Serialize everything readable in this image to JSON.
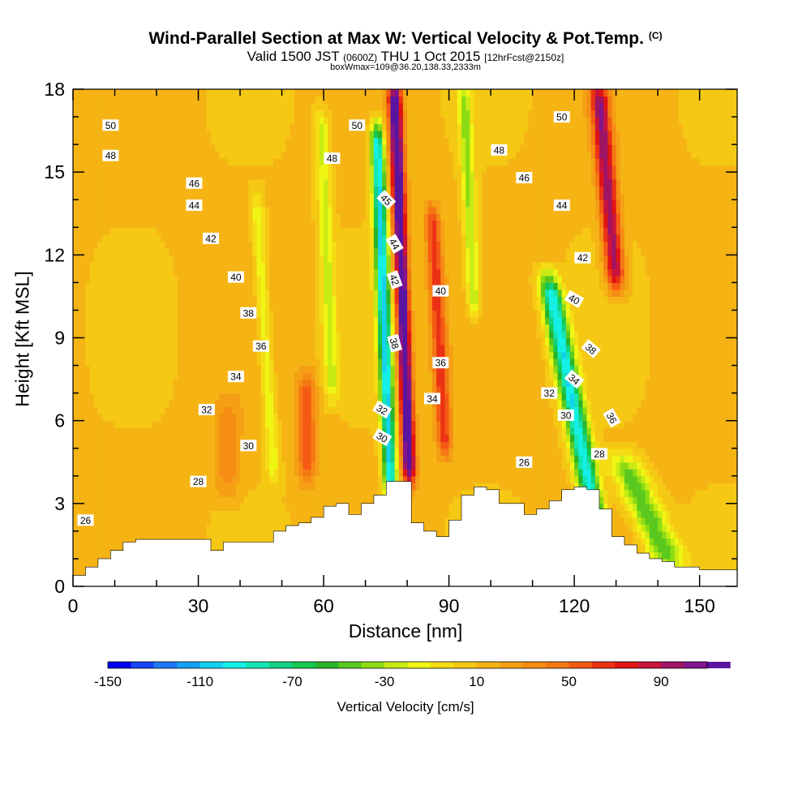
{
  "title": {
    "main": "Wind-Parallel Section at Max W: Vertical Velocity & Pot.Temp.",
    "copyright": "(C)",
    "valid_prefix": "Valid 1500 JST",
    "valid_utc": "(0600Z)",
    "valid_date": "THU 1 Oct 2015",
    "forecast_info": "[12hrFcst@2150z]",
    "box_info": "boxWmax=109@36.20,138.33,2333m"
  },
  "chart_data": {
    "type": "heatmap",
    "xlabel": "Distance [nm]",
    "ylabel": "Height [Kft MSL]",
    "xlim": [
      0,
      159
    ],
    "ylim": [
      0,
      18
    ],
    "xticks": [
      0,
      30,
      60,
      90,
      120,
      150
    ],
    "yticks": [
      0,
      3,
      6,
      9,
      12,
      15,
      18
    ],
    "field": "Vertical Velocity",
    "colorbar": {
      "label": "Vertical Velocity [cm/s]",
      "min": -150,
      "max": 110,
      "step": 10,
      "tick_labels": [
        "-150",
        "-110",
        "-70",
        "-30",
        "10",
        "50",
        "90"
      ],
      "tick_values": [
        -150,
        -110,
        -70,
        -30,
        10,
        50,
        90
      ],
      "colors": [
        "#0000f0",
        "#1446f5",
        "#1e78f5",
        "#14a0f5",
        "#14d2f0",
        "#14f0e6",
        "#14e6b4",
        "#14d282",
        "#14c850",
        "#28b428",
        "#5ac81e",
        "#8cdc14",
        "#c8eb14",
        "#f0f514",
        "#f5dc14",
        "#f5c814",
        "#f5b414",
        "#f5a014",
        "#f58c14",
        "#f57814",
        "#f55a14",
        "#eb3214",
        "#e11414",
        "#c8143c",
        "#a01464",
        "#82148c",
        "#5a14a0"
      ]
    },
    "background_velocity": 12,
    "updrafts": [
      {
        "x": 80.5,
        "y0": 4.0,
        "y1": 18.0,
        "slope": -0.25,
        "amp": 120,
        "width": 1.6
      },
      {
        "x": 89,
        "y0": 5.0,
        "y1": 13.5,
        "slope": -0.35,
        "amp": 55,
        "width": 1.8
      },
      {
        "x": 130,
        "y0": 11.0,
        "y1": 18.0,
        "slope": -0.6,
        "amp": 85,
        "width": 2.2
      },
      {
        "x": 56,
        "y0": 4.0,
        "y1": 7.5,
        "slope": 0.0,
        "amp": 45,
        "width": 2.2
      },
      {
        "x": 37,
        "y0": 3.5,
        "y1": 6.5,
        "slope": 0.0,
        "amp": 25,
        "width": 3.0
      }
    ],
    "downdrafts": [
      {
        "x": 76,
        "y0": 3.5,
        "y1": 16.5,
        "slope": -0.25,
        "amp": -115,
        "width": 1.6
      },
      {
        "x": 125,
        "y0": 2.5,
        "y1": 11.0,
        "slope": -1.3,
        "amp": -110,
        "width": 2.6
      },
      {
        "x": 143,
        "y0": 0.8,
        "y1": 4.5,
        "slope": -3.0,
        "amp": -60,
        "width": 4.0
      },
      {
        "x": 48,
        "y0": 4.0,
        "y1": 14.0,
        "slope": -0.4,
        "amp": -30,
        "width": 1.6
      },
      {
        "x": 62,
        "y0": 7.0,
        "y1": 17.0,
        "slope": -0.25,
        "amp": -35,
        "width": 1.7
      },
      {
        "x": 96,
        "y0": 10.0,
        "y1": 18.0,
        "slope": -0.3,
        "amp": -45,
        "width": 1.6
      }
    ],
    "terrain": {
      "x": [
        0,
        3,
        6,
        9,
        12,
        15,
        30,
        33,
        36,
        45,
        48,
        51,
        54,
        57,
        60,
        63,
        66,
        69,
        72,
        75,
        78,
        81,
        84,
        87,
        90,
        93,
        96,
        99,
        102,
        105,
        108,
        111,
        114,
        117,
        120,
        123,
        126,
        129,
        132,
        135,
        138,
        141,
        144,
        147,
        150,
        153,
        159
      ],
      "height": [
        0.4,
        0.7,
        1.0,
        1.3,
        1.6,
        1.7,
        1.7,
        1.3,
        1.6,
        1.6,
        2.0,
        2.2,
        2.3,
        2.5,
        2.9,
        3.0,
        2.6,
        3.0,
        3.3,
        3.8,
        3.8,
        2.3,
        2.0,
        1.8,
        2.4,
        3.3,
        3.6,
        3.5,
        3.0,
        3.0,
        2.6,
        2.8,
        3.1,
        3.5,
        3.6,
        3.5,
        2.8,
        1.8,
        1.5,
        1.2,
        1.0,
        0.9,
        0.7,
        0.7,
        0.6,
        0.6,
        0.6
      ]
    },
    "theta_contours": [
      {
        "value": 26,
        "label": "26",
        "label_x": 3,
        "label_y": 2.4
      },
      {
        "value": 28,
        "label": "28",
        "label_x": 30,
        "label_y": 3.8,
        "label2": "28",
        "label2_x": 126,
        "label2_y": 4.8
      },
      {
        "value": 30,
        "label": "30",
        "label_x": 42,
        "label_y": 5.1,
        "label2": "30",
        "label2_x": 118,
        "label2_y": 6.2
      },
      {
        "value": 32,
        "label": "32",
        "label_x": 32,
        "label_y": 6.4,
        "label2": "32",
        "label2_x": 114,
        "label2_y": 7.0
      },
      {
        "value": 34,
        "label": "34",
        "label_x": 39,
        "label_y": 7.6,
        "label2": "34",
        "label2_x": 86,
        "label2_y": 6.8
      },
      {
        "value": 36,
        "label": "36",
        "label_x": 45,
        "label_y": 8.7,
        "label2": "36",
        "label2_x": 88,
        "label2_y": 8.1
      },
      {
        "value": 38,
        "label": "38",
        "label_x": 42,
        "label_y": 9.9
      },
      {
        "value": 40,
        "label": "40",
        "label_x": 39,
        "label_y": 11.2,
        "label2": "40",
        "label2_x": 88,
        "label2_y": 10.7
      },
      {
        "value": 42,
        "label": "42",
        "label_x": 33,
        "label_y": 12.6,
        "label2": "42",
        "label2_x": 122,
        "label2_y": 11.9
      },
      {
        "value": 44,
        "label": "44",
        "label_x": 29,
        "label_y": 13.8,
        "label2": "44",
        "label2_x": 117,
        "label2_y": 13.8
      },
      {
        "value": 46,
        "label": "46",
        "label_x": 29,
        "label_y": 14.6,
        "label2": "46",
        "label2_x": 108,
        "label2_y": 14.8
      },
      {
        "value": 48,
        "label": "48",
        "label_x": 9,
        "label_y": 15.6,
        "label2": "48",
        "label2_x": 102,
        "label2_y": 15.8
      },
      {
        "value": 50,
        "label": "50",
        "label_x": 9,
        "label_y": 16.7,
        "label2": "50",
        "label2_x": 68,
        "label2_y": 16.7
      }
    ],
    "extra_theta_labels": [
      {
        "text": "45",
        "x": 75,
        "y": 14.0,
        "rotate": 45
      },
      {
        "text": "44",
        "x": 77,
        "y": 12.4,
        "rotate": 60
      },
      {
        "text": "42",
        "x": 77,
        "y": 11.1,
        "rotate": 70
      },
      {
        "text": "38",
        "x": 77,
        "y": 8.8,
        "rotate": 75
      },
      {
        "text": "32",
        "x": 74,
        "y": 6.4,
        "rotate": 30
      },
      {
        "text": "30",
        "x": 74,
        "y": 5.4,
        "rotate": 30
      },
      {
        "text": "48",
        "x": 62,
        "y": 15.5,
        "rotate": 0
      },
      {
        "text": "38",
        "x": 124,
        "y": 8.6,
        "rotate": 40
      },
      {
        "text": "34",
        "x": 120,
        "y": 7.5,
        "rotate": 40
      },
      {
        "text": "36",
        "x": 129,
        "y": 6.1,
        "rotate": 60
      },
      {
        "text": "40",
        "x": 120,
        "y": 10.4,
        "rotate": 30
      },
      {
        "text": "26",
        "x": 108,
        "y": 4.5,
        "rotate": 0
      },
      {
        "text": "50",
        "x": 117,
        "y": 17.0,
        "rotate": 0
      }
    ]
  }
}
